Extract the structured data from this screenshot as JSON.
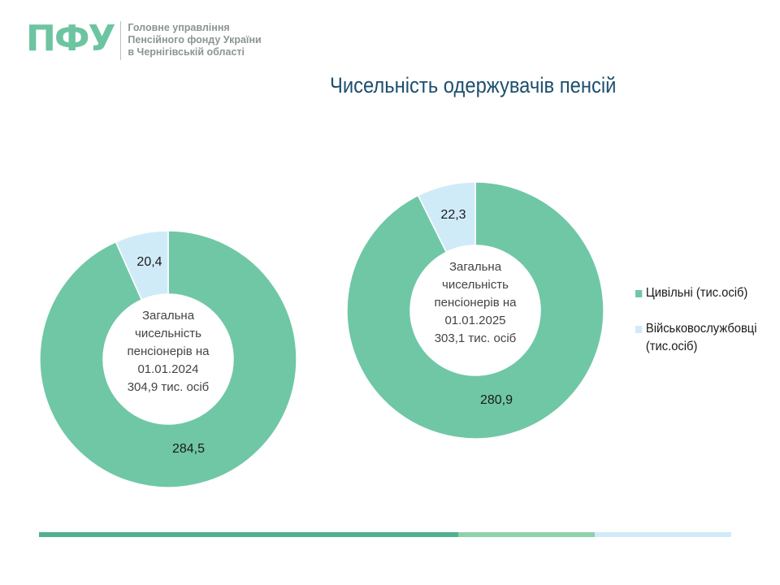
{
  "header": {
    "logo_mark": "ПФУ",
    "org_lines": [
      "Головне управління",
      "Пенсійного фонду України",
      "в Чернігівській області"
    ]
  },
  "title": "Чисельність  одержувачів  пенсій",
  "colors": {
    "civil": "#6fc7a6",
    "military": "#d0ebf8",
    "title": "#1d4f6e",
    "logo": "#6cc5a0"
  },
  "chart_data": [
    {
      "type": "pie",
      "donut": true,
      "categories": [
        "Цивільні (тис.осіб)",
        "Військовослужбовці (тис.осіб)"
      ],
      "values": [
        284.5,
        20.4
      ],
      "value_labels": [
        "284,5",
        "20,4"
      ],
      "center_text": [
        "Загальна",
        "чисельність",
        "пенсіонерів на",
        "01.01.2024",
        "304,9 тис. осіб"
      ]
    },
    {
      "type": "pie",
      "donut": true,
      "categories": [
        "Цивільні (тис.осіб)",
        "Військовослужбовці (тис.осіб)"
      ],
      "values": [
        280.9,
        22.3
      ],
      "value_labels": [
        "280,9",
        "22,3"
      ],
      "center_text": [
        "Загальна",
        "чисельність",
        "пенсіонерів на",
        "01.01.2025",
        "303,1 тис. осіб"
      ]
    }
  ],
  "legend": [
    {
      "label": "Цивільні (тис.осіб)",
      "color": "#6fc7a6"
    },
    {
      "label": "Військовослужбовці",
      "label_line2": "(тис.осіб)",
      "color": "#d0ebf8"
    }
  ],
  "footer_bar": [
    "#52b08e",
    "#8fd0ad",
    "#d0ebf8"
  ]
}
